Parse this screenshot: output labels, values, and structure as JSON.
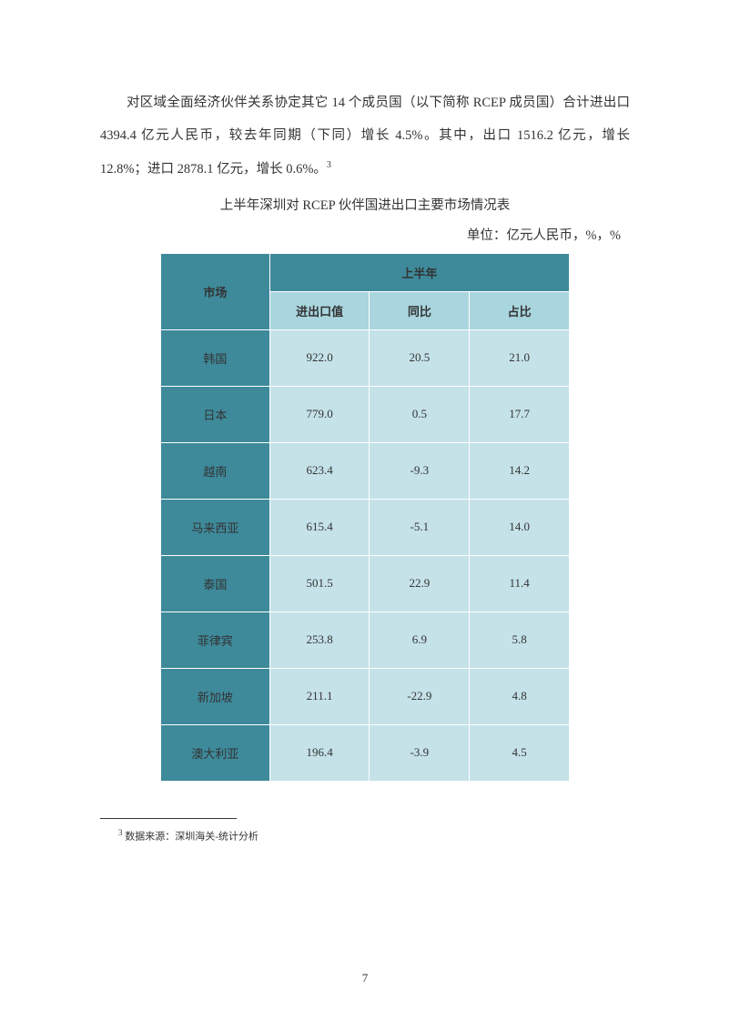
{
  "paragraph": {
    "text": "对区域全面经济伙伴关系协定其它 14 个成员国（以下简称 RCEP 成员国）合计进出口 4394.4 亿元人民币，较去年同期（下同）增长 4.5%。其中，出口 1516.2 亿元，增长 12.8%；进口 2878.1 亿元，增长 0.6%。",
    "footnote_ref": "3"
  },
  "table": {
    "title": "上半年深圳对 RCEP 伙伴国进出口主要市场情况表",
    "unit": "单位：亿元人民币，%，%",
    "type": "table",
    "header_dark_bg": "#3e8a9b",
    "header_light_bg": "#a9d5de",
    "row_label_bg": "#3e8a9b",
    "data_cell_bg": "#c4e2e8",
    "border_color": "#ffffff",
    "columns": {
      "market": "市场",
      "period_group": "上半年",
      "sub": [
        "进出口值",
        "同比",
        "占比"
      ]
    },
    "rows": [
      {
        "market": "韩国",
        "value": "922.0",
        "yoy": "20.5",
        "share": "21.0"
      },
      {
        "market": "日本",
        "value": "779.0",
        "yoy": "0.5",
        "share": "17.7"
      },
      {
        "market": "越南",
        "value": "623.4",
        "yoy": "-9.3",
        "share": "14.2"
      },
      {
        "market": "马来西亚",
        "value": "615.4",
        "yoy": "-5.1",
        "share": "14.0"
      },
      {
        "market": "泰国",
        "value": "501.5",
        "yoy": "22.9",
        "share": "11.4"
      },
      {
        "market": "菲律宾",
        "value": "253.8",
        "yoy": "6.9",
        "share": "5.8"
      },
      {
        "market": "新加坡",
        "value": "211.1",
        "yoy": "-22.9",
        "share": "4.8"
      },
      {
        "market": "澳大利亚",
        "value": "196.4",
        "yoy": "-3.9",
        "share": "4.5"
      }
    ]
  },
  "footnote": {
    "number": "3",
    "text": " 数据来源：深圳海关-统计分析"
  },
  "page_number": "7"
}
